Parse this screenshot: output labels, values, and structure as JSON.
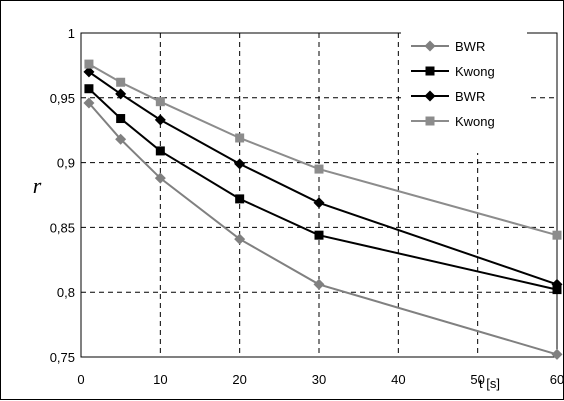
{
  "chart_data": {
    "type": "line",
    "xlabel": "t [s]",
    "ylabel": "r",
    "xlim": [
      0,
      60
    ],
    "ylim": [
      0.75,
      1
    ],
    "x_ticks": [
      0,
      10,
      20,
      30,
      40,
      50,
      60
    ],
    "x_tick_labels": [
      "0",
      "10",
      "20",
      "30",
      "40",
      "50",
      "60"
    ],
    "y_ticks": [
      0.75,
      0.8,
      0.85,
      0.9,
      0.95,
      1
    ],
    "y_tick_labels": [
      "0,75",
      "0,8",
      "0,85",
      "0,9",
      "0,95",
      "1"
    ],
    "grid": true,
    "grid_style": "dashed",
    "legend_position": "top-right",
    "series": [
      {
        "name": "BWR",
        "color": "#808080",
        "marker": "diamond",
        "x": [
          1,
          5,
          10,
          20,
          30,
          60
        ],
        "values": [
          0.946,
          0.918,
          0.888,
          0.841,
          0.806,
          0.752
        ]
      },
      {
        "name": "Kwong",
        "color": "#000000",
        "marker": "square",
        "x": [
          1,
          5,
          10,
          20,
          30,
          60
        ],
        "values": [
          0.957,
          0.934,
          0.909,
          0.872,
          0.844,
          0.802
        ]
      },
      {
        "name": "BWR",
        "color": "#000000",
        "marker": "diamond",
        "x": [
          1,
          5,
          10,
          20,
          30,
          60
        ],
        "values": [
          0.97,
          0.953,
          0.933,
          0.899,
          0.869,
          0.806
        ]
      },
      {
        "name": "Kwong",
        "color": "#8c8c8c",
        "marker": "square",
        "x": [
          1,
          5,
          10,
          20,
          30,
          60
        ],
        "values": [
          0.976,
          0.962,
          0.947,
          0.919,
          0.895,
          0.844
        ]
      }
    ]
  }
}
